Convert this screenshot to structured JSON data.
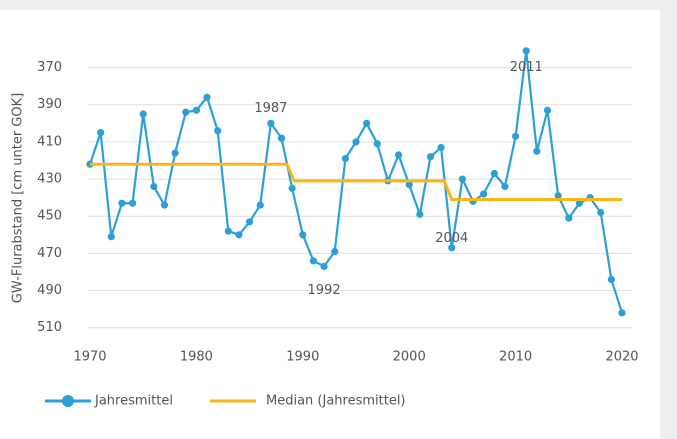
{
  "chart_data": {
    "type": "line",
    "y_label": "GW-Flurabstand [cm unter GOK]",
    "x": [
      1970,
      1971,
      1972,
      1973,
      1974,
      1975,
      1976,
      1977,
      1978,
      1979,
      1980,
      1981,
      1982,
      1983,
      1984,
      1985,
      1986,
      1987,
      1988,
      1989,
      1990,
      1991,
      1992,
      1993,
      1994,
      1995,
      1996,
      1997,
      1998,
      1999,
      2000,
      2001,
      2002,
      2003,
      2004,
      2005,
      2006,
      2007,
      2008,
      2009,
      2010,
      2011,
      2012,
      2013,
      2014,
      2015,
      2016,
      2017,
      2018,
      2019,
      2020
    ],
    "series": [
      {
        "name": "Jahresmittel",
        "color": "#2c9fd9",
        "markers": true,
        "values": [
          422,
          405,
          461,
          443,
          443,
          395,
          434,
          444,
          416,
          394,
          393,
          386,
          404,
          458,
          460,
          453,
          444,
          400,
          408,
          435,
          460,
          474,
          477,
          469,
          419,
          410,
          400,
          411,
          431,
          417,
          433,
          449,
          418,
          413,
          467,
          430,
          442,
          438,
          427,
          434,
          407,
          361,
          415,
          393,
          439,
          451,
          443,
          440,
          448,
          484,
          502
        ]
      },
      {
        "name": "Median (Jahresmittel)",
        "color": "#fbb516",
        "markers": false,
        "x": [
          1970,
          1988.5,
          1989.2,
          2003.3,
          2004,
          2020
        ],
        "values": [
          422,
          422,
          431,
          431,
          441,
          441
        ]
      }
    ],
    "annotations": [
      {
        "text": "1987",
        "x": 1987,
        "y": 392
      },
      {
        "text": "1992",
        "x": 1992,
        "y": 490
      },
      {
        "text": "2004",
        "x": 2004,
        "y": 462
      },
      {
        "text": "2011",
        "x": 2011,
        "y": 370
      }
    ],
    "xlim": [
      1970,
      2020
    ],
    "xticks": [
      1970,
      1980,
      1990,
      2000,
      2010,
      2020
    ],
    "ylim": [
      515,
      360
    ],
    "yticks": [
      370,
      390,
      410,
      430,
      450,
      470,
      490,
      510
    ],
    "y_inverted": true,
    "grid": true,
    "legend": "bottom-left"
  }
}
